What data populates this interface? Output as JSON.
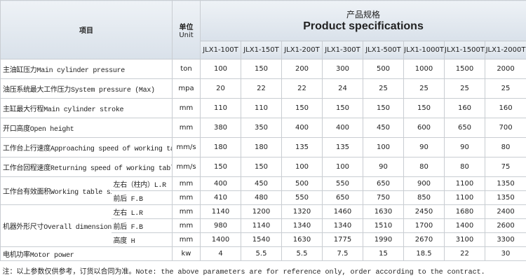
{
  "header": {
    "item": "项目",
    "unit_cn": "单位",
    "unit_en": "Unit",
    "title_cn": "产品规格",
    "title_en": "Product specifications",
    "models": [
      "JLX1-100T",
      "JLX1-150T",
      "JLX1-200T",
      "JLX1-300T",
      "JLX1-500T",
      "JLX1-1000T",
      "JLX1-1500T",
      "JLX1-2000T"
    ]
  },
  "rows": [
    {
      "label": "主油缸压力Main cylinder pressure",
      "unit": "ton",
      "values": [
        100,
        150,
        200,
        300,
        500,
        1000,
        1500,
        2000
      ]
    },
    {
      "label": "油压系统最大工作压力System pressure (Max)",
      "unit": "mpa",
      "values": [
        20,
        22,
        22,
        24,
        25,
        25,
        25,
        25
      ]
    },
    {
      "label": "主缸最大行程Main cylinder stroke",
      "unit": "mm",
      "values": [
        110,
        110,
        150,
        150,
        150,
        150,
        160,
        160
      ]
    },
    {
      "label": "开口高度Open height",
      "unit": "mm",
      "values": [
        380,
        350,
        400,
        400,
        450,
        600,
        650,
        700
      ]
    },
    {
      "label": "工作台上行速度Approaching speed of working table",
      "unit": "mm/s",
      "values": [
        180,
        180,
        135,
        135,
        100,
        90,
        90,
        80
      ]
    },
    {
      "label": "工作台回程速度Returning speed of working table",
      "unit": "mm/s",
      "values": [
        150,
        150,
        100,
        100,
        90,
        80,
        80,
        75
      ]
    },
    {
      "label": "工作台有效面积Working table size",
      "subrows": [
        {
          "label": "左右（柱内）L.R",
          "unit": "mm",
          "values": [
            400,
            450,
            500,
            550,
            650,
            900,
            1100,
            1350
          ]
        },
        {
          "label": "前后 F.B",
          "unit": "mm",
          "values": [
            410,
            480,
            550,
            650,
            750,
            850,
            1100,
            1350
          ]
        }
      ]
    },
    {
      "label": "机器外形尺寸Overall dimension",
      "subrows": [
        {
          "label": "左右 L.R",
          "unit": "mm",
          "values": [
            1140,
            1200,
            1320,
            1460,
            1630,
            2450,
            1680,
            2400
          ]
        },
        {
          "label": "前后 F.B",
          "unit": "mm",
          "values": [
            980,
            1140,
            1340,
            1340,
            1510,
            1700,
            1400,
            2600
          ]
        },
        {
          "label": "高度 H",
          "unit": "mm",
          "values": [
            1400,
            1540,
            1630,
            1775,
            1990,
            2670,
            3100,
            3300
          ]
        }
      ]
    },
    {
      "label": "电机功率Motor power",
      "unit": "kw",
      "values": [
        4,
        5.5,
        5.5,
        7.5,
        15,
        18.5,
        22,
        30
      ]
    }
  ],
  "note": "注：以上参数仅供参考，订货以合同为准。Note: the above parameters are for reference only, order according to the contract."
}
